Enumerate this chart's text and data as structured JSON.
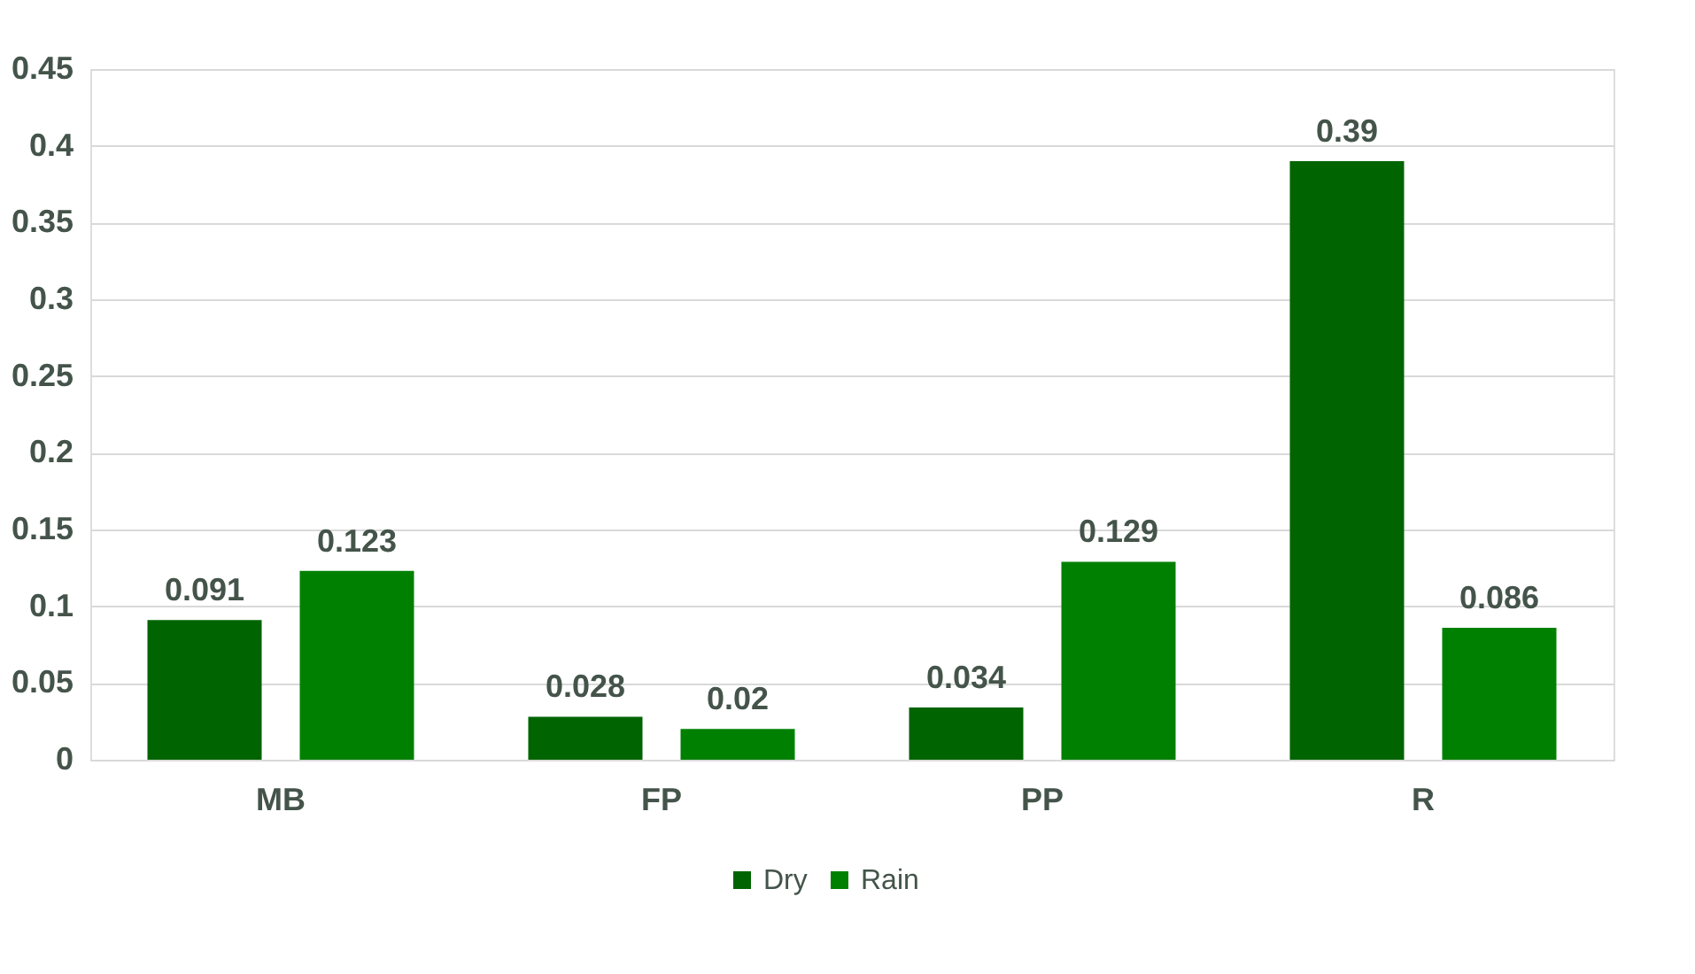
{
  "chart_data": {
    "type": "bar",
    "categories": [
      "MB",
      "FP",
      "PP",
      "R"
    ],
    "series": [
      {
        "name": "Dry",
        "color": "#006400",
        "values": [
          0.091,
          0.028,
          0.034,
          0.39
        ]
      },
      {
        "name": "Rain",
        "color": "#008000",
        "values": [
          0.123,
          0.02,
          0.129,
          0.086
        ]
      }
    ],
    "ylim": [
      0,
      0.45
    ],
    "yticks": [
      0,
      0.05,
      0.1,
      0.15,
      0.2,
      0.25,
      0.3,
      0.35,
      0.4,
      0.45
    ],
    "grid": "y",
    "legend": "bottom",
    "data_labels": true
  }
}
